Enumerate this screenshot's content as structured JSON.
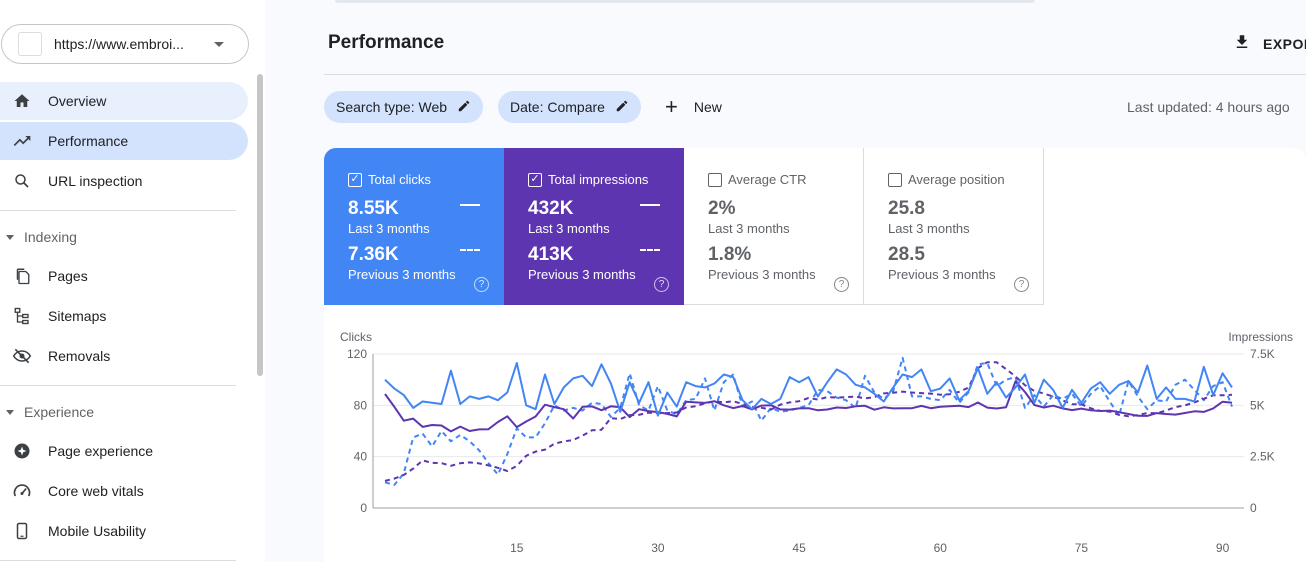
{
  "property": {
    "url": "https://www.embroi..."
  },
  "nav": {
    "overview": "Overview",
    "performance": "Performance",
    "url_inspection": "URL inspection",
    "indexing": "Indexing",
    "pages": "Pages",
    "sitemaps": "Sitemaps",
    "removals": "Removals",
    "experience": "Experience",
    "page_experience": "Page experience",
    "core_web_vitals": "Core web vitals",
    "mobile_usability": "Mobile Usability"
  },
  "header": {
    "title": "Performance",
    "export": "EXPOR"
  },
  "filters": {
    "search_type": "Search type: Web",
    "date": "Date: Compare",
    "new": "New",
    "last_updated": "Last updated: 4 hours ago"
  },
  "metrics": {
    "clicks": {
      "label": "Total clicks",
      "value": "8.55K",
      "period": "Last 3 months",
      "prev_value": "7.36K",
      "prev_period": "Previous 3 months"
    },
    "impressions": {
      "label": "Total impressions",
      "value": "432K",
      "period": "Last 3 months",
      "prev_value": "413K",
      "prev_period": "Previous 3 months"
    },
    "ctr": {
      "label": "Average CTR",
      "value": "2%",
      "period": "Last 3 months",
      "prev_value": "1.8%",
      "prev_period": "Previous 3 months"
    },
    "position": {
      "label": "Average position",
      "value": "25.8",
      "period": "Last 3 months",
      "prev_value": "28.5",
      "prev_period": "Previous 3 months"
    },
    "help": "?"
  },
  "colors": {
    "clicks": "#4285f4",
    "impressions": "#5e35b1"
  },
  "chart_data": {
    "type": "line",
    "ylabel_left": "Clicks",
    "ylabel_right": "Impressions",
    "ylim_left": [
      0,
      120
    ],
    "ylim_right": [
      0,
      7500
    ],
    "yticks_left": [
      "120",
      "80",
      "40",
      "0"
    ],
    "yticks_right": [
      "7.5K",
      "5K",
      "2.5K",
      "0"
    ],
    "xticks": [
      15,
      30,
      45,
      60,
      75,
      90
    ],
    "grid": true,
    "series": [
      {
        "name": "Total clicks",
        "style": "solid",
        "axis": "left",
        "values": [
          100,
          93,
          88,
          78,
          83,
          82,
          81,
          107,
          81,
          87,
          85,
          87,
          84,
          90,
          113,
          80,
          77,
          104,
          81,
          94,
          101,
          103,
          95,
          112,
          97,
          75,
          98,
          82,
          98,
          72,
          90,
          79,
          98,
          95,
          94,
          97,
          104,
          102,
          84,
          77,
          85,
          81,
          85,
          102,
          98,
          102,
          87,
          98,
          108,
          104,
          96,
          94,
          89,
          83,
          94,
          104,
          102,
          108,
          91,
          93,
          101,
          84,
          91,
          109,
          89,
          98,
          86,
          94,
          104,
          82,
          100,
          92,
          78,
          92,
          82,
          93,
          98,
          89,
          96,
          99,
          90,
          111,
          85,
          94,
          85,
          85,
          83,
          110,
          88,
          105,
          94
        ]
      },
      {
        "name": "Total clicks (previous)",
        "style": "dashed",
        "axis": "left",
        "values": [
          20,
          18,
          27,
          55,
          58,
          48,
          60,
          52,
          57,
          52,
          45,
          35,
          26,
          42,
          62,
          55,
          55,
          66,
          80,
          76,
          78,
          76,
          82,
          81,
          71,
          78,
          105,
          80,
          76,
          95,
          76,
          73,
          84,
          85,
          101,
          76,
          98,
          104,
          79,
          83,
          68,
          78,
          75,
          76,
          78,
          80,
          92,
          91,
          86,
          84,
          78,
          103,
          90,
          85,
          91,
          117,
          87,
          87,
          85,
          84,
          92,
          82,
          90,
          112,
          113,
          95,
          100,
          102,
          78,
          88,
          79,
          88,
          85,
          89,
          79,
          89,
          95,
          83,
          72,
          99,
          87,
          77,
          84,
          83,
          96,
          100,
          92,
          84,
          95,
          98,
          79
        ]
      },
      {
        "name": "Total impressions",
        "style": "solid",
        "axis": "right",
        "values": [
          5553,
          4925,
          4253,
          4355,
          3951,
          4042,
          4020,
          3731,
          3962,
          3749,
          3826,
          3840,
          4188,
          4465,
          3942,
          4212,
          4458,
          5029,
          4916,
          4811,
          4359,
          4928,
          4947,
          4762,
          4955,
          4904,
          4429,
          4813,
          4717,
          4669,
          4585,
          4462,
          5175,
          5144,
          5118,
          5200,
          5001,
          4865,
          4968,
          4802,
          4988,
          5005,
          4800,
          4790,
          4851,
          4859,
          4759,
          4795,
          4896,
          4868,
          4952,
          4977,
          4788,
          4902,
          4853,
          4856,
          4859,
          4971,
          4862,
          4935,
          4951,
          4976,
          4915,
          5140,
          4891,
          4848,
          4911,
          6166,
          5650,
          5014,
          4893,
          4982,
          4853,
          4767,
          4840,
          4760,
          4724,
          4744,
          4666,
          4578,
          4489,
          4483,
          4624,
          4578,
          4549,
          4626,
          4711,
          4681,
          4853,
          5178,
          5123
        ]
      },
      {
        "name": "Total impressions (previous)",
        "style": "dashed",
        "axis": "right",
        "values": [
          1320,
          1431,
          1610,
          1918,
          2316,
          2198,
          2188,
          2053,
          2182,
          2220,
          2174,
          2077,
          1959,
          1802,
          2048,
          2544,
          2745,
          2842,
          3131,
          3242,
          3312,
          3524,
          3786,
          3813,
          4377,
          4329,
          4525,
          4537,
          4643,
          4620,
          4620,
          4652,
          4897,
          4956,
          5098,
          5193,
          5150,
          5197,
          5070,
          4914,
          4881,
          4794,
          5035,
          5145,
          5200,
          5356,
          5280,
          5399,
          5378,
          5402,
          5424,
          5339,
          5399,
          5580,
          5616,
          5667,
          5625,
          5594,
          5572,
          5518,
          5543,
          5659,
          5864,
          6815,
          7100,
          7094,
          6767,
          6410,
          5979,
          5700,
          5574,
          5423,
          5243,
          5051,
          5050,
          4857,
          4731,
          4695,
          4536,
          4469,
          4523,
          4627,
          4617,
          4745,
          4919,
          4996,
          5145,
          5318,
          5488,
          5491,
          5515
        ]
      }
    ]
  }
}
